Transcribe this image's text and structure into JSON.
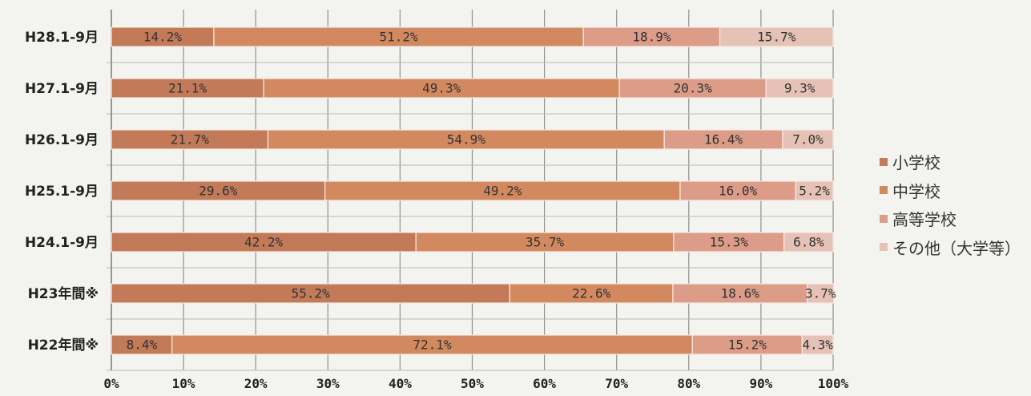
{
  "chart_data": {
    "type": "bar",
    "orientation": "horizontal",
    "stacked": true,
    "categories": [
      "H28.1-9月",
      "H27.1-9月",
      "H26.1-9月",
      "H25.1-9月",
      "H24.1-9月",
      "H23年間※",
      "H22年間※"
    ],
    "series": [
      {
        "name": "小学校",
        "values": [
          14.2,
          21.1,
          21.7,
          29.6,
          42.2,
          55.2,
          8.4
        ]
      },
      {
        "name": "中学校",
        "values": [
          51.2,
          49.3,
          54.9,
          49.2,
          35.7,
          22.6,
          72.1
        ]
      },
      {
        "name": "高等学校",
        "values": [
          18.9,
          20.3,
          16.4,
          16.0,
          15.3,
          18.6,
          15.2
        ]
      },
      {
        "name": "その他（大学等）",
        "values": [
          15.7,
          9.3,
          7.0,
          5.2,
          6.8,
          3.7,
          4.3
        ]
      }
    ],
    "value_labels": [
      [
        "14.2%",
        "51.2%",
        "18.9%",
        "15.7%"
      ],
      [
        "21.1%",
        "49.3%",
        "20.3%",
        "9.3%"
      ],
      [
        "21.7%",
        "54.9%",
        "16.4%",
        "7.0%"
      ],
      [
        "29.6%",
        "49.2%",
        "16.0%",
        "5.2%"
      ],
      [
        "42.2%",
        "35.7%",
        "15.3%",
        "6.8%"
      ],
      [
        "55.2%",
        "22.6%",
        "18.6%",
        "3.7%"
      ],
      [
        "8.4%",
        "72.1%",
        "15.2%",
        "4.3%"
      ]
    ],
    "x_ticks": [
      "0%",
      "10%",
      "20%",
      "30%",
      "40%",
      "50%",
      "60%",
      "70%",
      "80%",
      "90%",
      "100%"
    ],
    "xlim": [
      0,
      100
    ],
    "grid": true,
    "legend_position": "right",
    "colors": [
      "#c27a58",
      "#d3895f",
      "#dc9c88",
      "#e6c2b6"
    ],
    "title": "",
    "xlabel": "",
    "ylabel": ""
  }
}
